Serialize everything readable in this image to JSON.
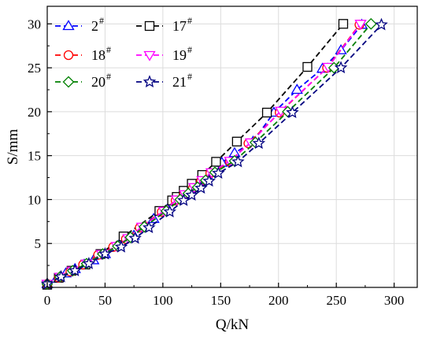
{
  "chart_data": {
    "type": "line",
    "xlabel": "Q/kN",
    "ylabel": "S/mm",
    "xlim": [
      0,
      320
    ],
    "ylim": [
      0,
      32
    ],
    "xticks": [
      "0",
      "50",
      "100",
      "150",
      "200",
      "250",
      "300"
    ],
    "yticks": [
      "5",
      "10",
      "15",
      "20",
      "25",
      "30"
    ],
    "grid": true,
    "legend_placement": "top-left",
    "series": [
      {
        "name": "2",
        "sup": "#",
        "color": "#0000ff",
        "marker": "triangle-up",
        "x": [
          0,
          8,
          16,
          24,
          32,
          40,
          50,
          62,
          75,
          92,
          104,
          114,
          120,
          126,
          138,
          151,
          162,
          178,
          196,
          216,
          238,
          254,
          272
        ],
        "y": [
          0.4,
          1.0,
          1.6,
          2.1,
          2.6,
          3.1,
          3.8,
          4.8,
          5.9,
          7.8,
          8.9,
          10.0,
          10.8,
          11.5,
          12.8,
          14.2,
          15.3,
          16.6,
          19.9,
          22.5,
          24.9,
          27.0,
          29.9
        ]
      },
      {
        "name": "17",
        "sup": "#",
        "color": "#000000",
        "marker": "square",
        "x": [
          0,
          10,
          21,
          33,
          46,
          66,
          97,
          108,
          112,
          118,
          125,
          134,
          146,
          164,
          190,
          225,
          256
        ],
        "y": [
          0.3,
          1.1,
          1.9,
          2.6,
          3.8,
          5.8,
          8.7,
          9.9,
          10.3,
          11.0,
          11.8,
          12.8,
          14.3,
          16.6,
          19.9,
          25.1,
          30.0
        ]
      },
      {
        "name": "18",
        "sup": "#",
        "color": "#ff0000",
        "marker": "circle",
        "x": [
          0,
          10,
          20,
          31,
          44,
          57,
          68,
          80,
          99,
          111,
          118,
          126,
          133,
          141,
          158,
          174,
          201,
          242,
          270
        ],
        "y": [
          0.4,
          1.1,
          1.8,
          2.6,
          3.7,
          4.6,
          5.5,
          6.8,
          8.6,
          9.9,
          10.5,
          11.3,
          12.1,
          13.0,
          14.3,
          16.4,
          19.9,
          25.0,
          29.9
        ]
      },
      {
        "name": "19",
        "sup": "#",
        "color": "#ff00ff",
        "marker": "triangle-down",
        "x": [
          0,
          11,
          22,
          34,
          47,
          60,
          70,
          82,
          101,
          112,
          119,
          127,
          134,
          142,
          158,
          176,
          202,
          243,
          271
        ],
        "y": [
          0.4,
          1.2,
          1.9,
          2.7,
          3.8,
          4.7,
          5.6,
          6.9,
          8.7,
          10.0,
          10.6,
          11.4,
          12.2,
          13.1,
          14.4,
          16.5,
          20.1,
          25.1,
          30.0
        ]
      },
      {
        "name": "20",
        "sup": "#",
        "color": "#008000",
        "marker": "diamond",
        "x": [
          0,
          11,
          22,
          34,
          48,
          61,
          72,
          84,
          103,
          115,
          122,
          130,
          137,
          145,
          162,
          180,
          208,
          248,
          280
        ],
        "y": [
          0.4,
          1.2,
          1.9,
          2.7,
          3.8,
          4.7,
          5.7,
          6.9,
          8.7,
          10.0,
          10.7,
          11.4,
          12.2,
          13.1,
          14.4,
          16.5,
          20.0,
          25.0,
          30.0
        ]
      },
      {
        "name": "21",
        "sup": "#",
        "color": "#000080",
        "marker": "star",
        "x": [
          0,
          12,
          24,
          36,
          50,
          64,
          76,
          88,
          106,
          118,
          125,
          133,
          140,
          148,
          165,
          183,
          212,
          254,
          289
        ],
        "y": [
          0.4,
          1.2,
          1.9,
          2.7,
          3.8,
          4.6,
          5.6,
          6.8,
          8.6,
          9.9,
          10.5,
          11.3,
          12.1,
          13.0,
          14.3,
          16.4,
          19.9,
          25.0,
          29.9
        ]
      }
    ]
  }
}
